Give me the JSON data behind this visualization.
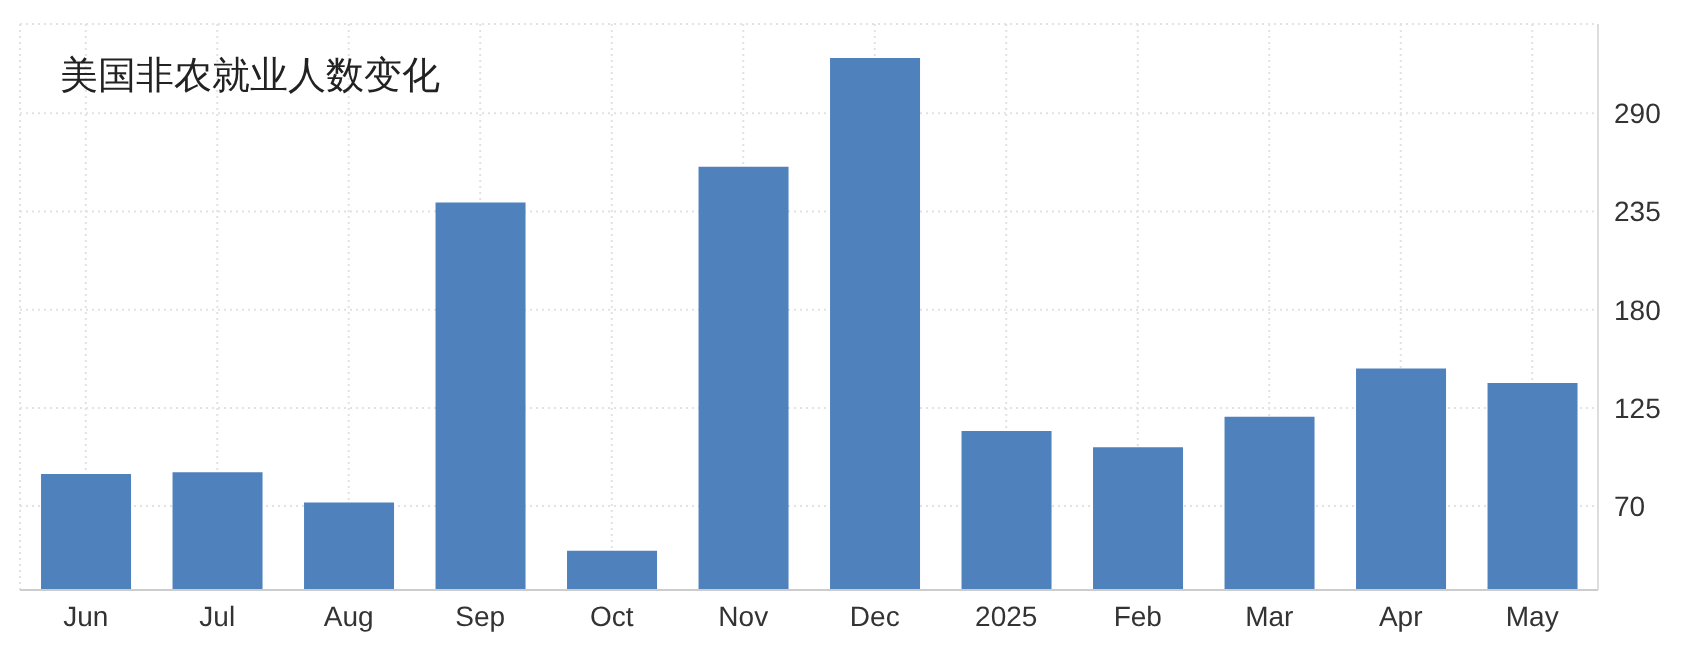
{
  "chart_data": {
    "type": "bar",
    "title": "美国非农就业人数变化",
    "categories": [
      "Jun",
      "Jul",
      "Aug",
      "Sep",
      "Oct",
      "Nov",
      "Dec",
      "2025",
      "Feb",
      "Mar",
      "Apr",
      "May"
    ],
    "values": [
      88,
      89,
      72,
      240,
      45,
      260,
      321,
      112,
      103,
      120,
      147,
      139
    ],
    "color": "#4f81bd",
    "ylim": [
      23,
      340
    ],
    "yticks": [
      70,
      125,
      180,
      235,
      290
    ],
    "grid": true
  }
}
